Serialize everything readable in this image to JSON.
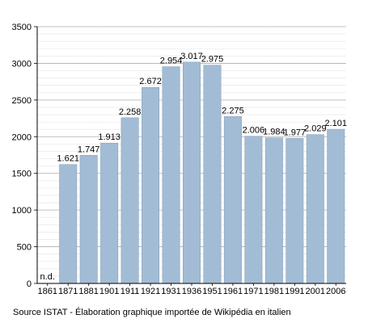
{
  "chart_data": {
    "type": "bar",
    "categories": [
      "1861",
      "1871",
      "1881",
      "1901",
      "1911",
      "1921",
      "1931",
      "1936",
      "1951",
      "1961",
      "1971",
      "1981",
      "1991",
      "2001",
      "2006"
    ],
    "values": [
      null,
      1621,
      1747,
      1913,
      2258,
      2672,
      2954,
      3017,
      2975,
      2275,
      2006,
      1984,
      1977,
      2029,
      2101
    ],
    "value_labels": [
      "n.d.",
      "1.621",
      "1.747",
      "1.913",
      "2.258",
      "2.672",
      "2.954",
      "3.017",
      "2.975",
      "2.275",
      "2.006",
      "1.984",
      "1.977",
      "2.029",
      "2.101"
    ],
    "y_ticks": [
      "0",
      "500",
      "1000",
      "1500",
      "2000",
      "2500",
      "3000",
      "3500"
    ],
    "ylim": [
      0,
      3500
    ],
    "y_minor_step": 100,
    "grid": true,
    "bar_color": "#a3bcd5",
    "bar_edge_color": "#8aa3bd",
    "grid_color": "#c8c8c8",
    "title": "",
    "xlabel": "",
    "ylabel": ""
  },
  "source_note": "Source ISTAT - Élaboration graphique importée de Wikipédia en italien"
}
